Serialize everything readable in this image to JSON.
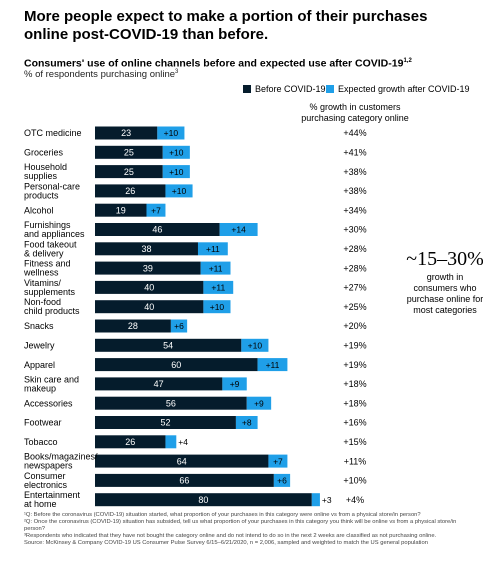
{
  "title": "More people expect to make a portion of their purchases online post-COVID-19 than before.",
  "subtitle": "Consumers' use of online channels before and expected use after COVID-19",
  "subtitle_sup": "1,2",
  "subtitle2": "% of respondents purchasing online",
  "subtitle2_sup": "3",
  "legend": {
    "before_label": "Before COVID-19",
    "growth_label": "Expected growth after COVID-19"
  },
  "column_header": "% growth in customers purchasing category online",
  "callout": {
    "big": "~15–30%",
    "small": "growth in consumers who purchase online for most categories"
  },
  "colors": {
    "before": "#051c2c",
    "growth": "#1f9fe8"
  },
  "chart_data": {
    "type": "bar",
    "orientation": "horizontal",
    "stacked": true,
    "categories": [
      "OTC medicine",
      "Groceries",
      "Household supplies",
      "Personal-care products",
      "Alcohol",
      "Furnishings and appliances",
      "Food takeout & delivery",
      "Fitness and wellness",
      "Vitamins/ supplements",
      "Non-food child products",
      "Snacks",
      "Jewelry",
      "Apparel",
      "Skin care and makeup",
      "Accessories",
      "Footwear",
      "Tobacco",
      "Books/magazines/ newspapers",
      "Consumer electronics",
      "Entertainment at home"
    ],
    "series": [
      {
        "name": "Before COVID-19",
        "values": [
          23,
          25,
          25,
          26,
          19,
          46,
          38,
          39,
          40,
          40,
          28,
          54,
          60,
          47,
          56,
          52,
          26,
          64,
          66,
          80
        ]
      },
      {
        "name": "Expected growth after COVID-19",
        "values": [
          10,
          10,
          10,
          10,
          7,
          14,
          11,
          11,
          11,
          10,
          6,
          10,
          11,
          9,
          9,
          8,
          4,
          7,
          6,
          3
        ]
      }
    ],
    "value_labels_before": [
      "23",
      "25",
      "25",
      "26",
      "19",
      "46",
      "38",
      "39",
      "40",
      "40",
      "28",
      "54",
      "60",
      "47",
      "56",
      "52",
      "26",
      "64",
      "66",
      "80"
    ],
    "value_labels_growth": [
      "+10",
      "+10",
      "+10",
      "+10",
      "+7",
      "+14",
      "+11",
      "+11",
      "+11",
      "+10",
      "+6",
      "+10",
      "+11",
      "+9",
      "+9",
      "+8",
      "+4",
      "+7",
      "+6",
      "+3"
    ],
    "growth_pct": [
      "+44%",
      "+41%",
      "+38%",
      "+38%",
      "+34%",
      "+30%",
      "+28%",
      "+28%",
      "+27%",
      "+25%",
      "+20%",
      "+19%",
      "+19%",
      "+18%",
      "+18%",
      "+16%",
      "+15%",
      "+11%",
      "+10%",
      "+4%"
    ],
    "xlim": [
      0,
      100
    ],
    "grid": false,
    "legend_position": "top-right"
  },
  "footnotes": [
    "¹Q: Before the coronavirus (COVID-19) situation started, what proportion of your purchases in this category were online vs from a physical store/in person?",
    "²Q: Once the coronavirus (COVID-19) situation has subsided, tell us what proportion of your purchases in this category you think will be online vs from a physical store/in person?",
    "³Respondents who indicated that they have not bought the category online and do not intend to do so in the next 2 weeks are classified as not purchasing online.",
    "Source: McKinsey & Company COVID-19 US Consumer Pulse Survey 6/15–6/21/2020, n = 2,006, sampled and weighted to match the US general population"
  ]
}
